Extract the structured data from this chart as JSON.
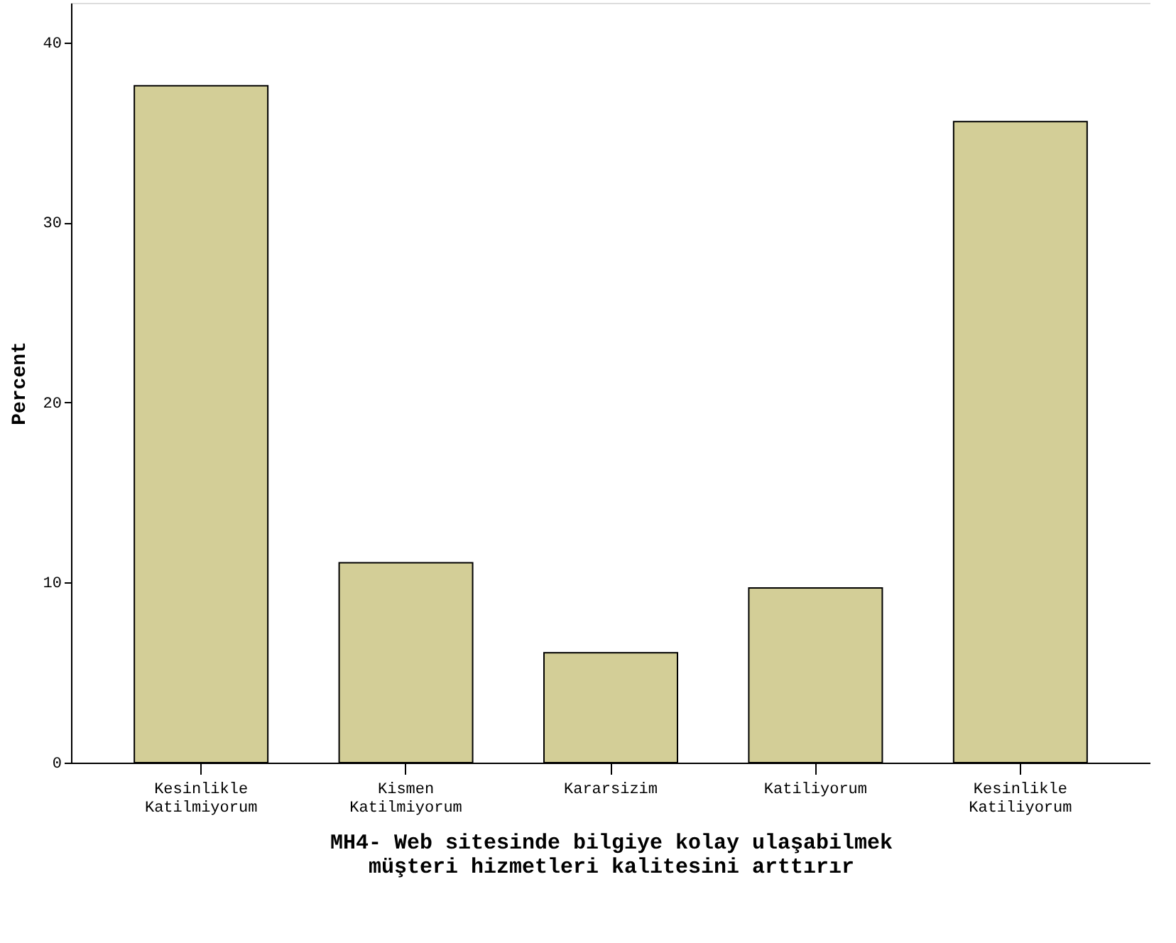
{
  "chart_data": {
    "type": "bar",
    "xlabel": "MH4- Web sitesinde bilgiye kolay ulaşabilmek müşteri hizmetleri kalitesini arttırır",
    "ylabel": "Percent",
    "categories": [
      "Kesinlikle Katilmiyorum",
      "Kismen Katilmiyorum",
      "Kararsizim",
      "Katiliyorum",
      "Kesinlikle Katiliyorum"
    ],
    "values": [
      37.6,
      11.1,
      6.1,
      9.7,
      35.6
    ],
    "color": "#d3ce97",
    "ylim": [
      0,
      42.2
    ],
    "yticks": [
      0,
      10,
      20,
      30,
      40
    ],
    "grid": false
  }
}
